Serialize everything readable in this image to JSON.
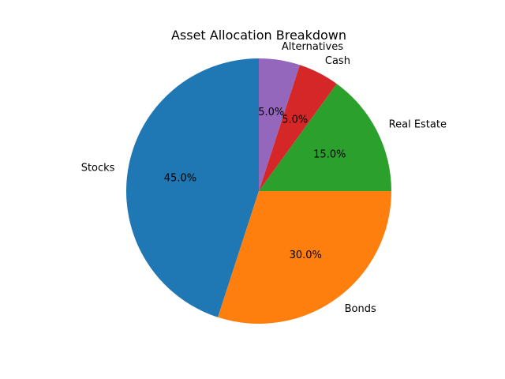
{
  "chart_data": {
    "type": "pie",
    "title": "Asset Allocation Breakdown",
    "labels": [
      "Stocks",
      "Bonds",
      "Real Estate",
      "Cash",
      "Alternatives"
    ],
    "values": [
      45,
      30,
      15,
      5,
      5
    ],
    "percent_labels": [
      "45.0%",
      "30.0%",
      "15.0%",
      "5.0%",
      "5.0%"
    ],
    "colors": [
      "#1f77b4",
      "#ff7f0e",
      "#2ca02c",
      "#d62728",
      "#9467bd"
    ],
    "start_angle_deg": 90,
    "direction": "counterclockwise",
    "legend": false
  }
}
